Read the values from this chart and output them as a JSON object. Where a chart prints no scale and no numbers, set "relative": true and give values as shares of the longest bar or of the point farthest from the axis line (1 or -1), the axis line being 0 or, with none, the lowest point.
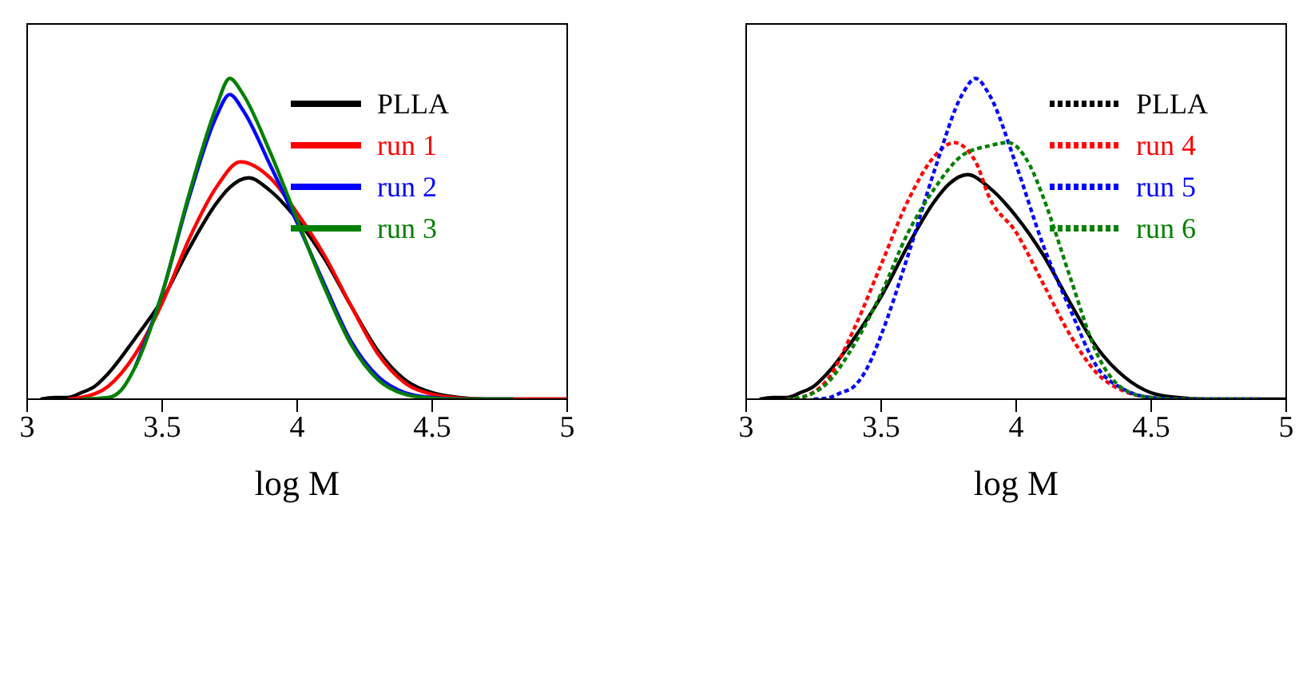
{
  "chart_data": [
    {
      "type": "line",
      "relative": true,
      "xlabel": "log M",
      "xlim": [
        3,
        5
      ],
      "xticks": [
        3,
        3.5,
        4,
        4.5,
        5
      ],
      "legend": "top right",
      "line_style": "solid",
      "series": [
        {
          "name": "PLLA",
          "color": "#000000",
          "x": [
            3.05,
            3.1,
            3.15,
            3.2,
            3.25,
            3.3,
            3.4,
            3.5,
            3.6,
            3.7,
            3.75,
            3.82,
            3.9,
            4.0,
            4.1,
            4.2,
            4.3,
            4.4,
            4.5,
            4.6,
            4.7,
            5.0
          ],
          "values": [
            0,
            0.005,
            0.005,
            0.02,
            0.04,
            0.08,
            0.19,
            0.31,
            0.47,
            0.61,
            0.66,
            0.69,
            0.65,
            0.56,
            0.44,
            0.29,
            0.15,
            0.06,
            0.02,
            0.005,
            0,
            0
          ]
        },
        {
          "name": "run 1",
          "color": "#ff0000",
          "x": [
            3.15,
            3.2,
            3.3,
            3.4,
            3.5,
            3.6,
            3.7,
            3.79,
            3.9,
            4.0,
            4.1,
            4.2,
            4.3,
            4.4,
            4.5,
            4.6,
            4.7,
            5.0
          ],
          "values": [
            0,
            0.005,
            0.04,
            0.14,
            0.3,
            0.5,
            0.66,
            0.74,
            0.69,
            0.58,
            0.45,
            0.29,
            0.14,
            0.05,
            0.015,
            0.003,
            0,
            0
          ]
        },
        {
          "name": "run 2",
          "color": "#0000ff",
          "x": [
            3.4,
            3.5,
            3.6,
            3.7,
            3.75,
            3.8,
            3.9,
            4.0,
            4.1,
            4.2,
            4.3,
            4.4,
            4.5,
            4.6,
            4.8
          ],
          "values": [
            0.1,
            0.33,
            0.63,
            0.88,
            0.95,
            0.9,
            0.73,
            0.55,
            0.36,
            0.18,
            0.07,
            0.02,
            0.005,
            0,
            0
          ]
        },
        {
          "name": "run 3",
          "color": "#008000",
          "x": [
            3.2,
            3.3,
            3.35,
            3.4,
            3.5,
            3.6,
            3.7,
            3.75,
            3.8,
            3.9,
            4.0,
            4.1,
            4.2,
            4.3,
            4.4,
            4.5,
            4.6,
            4.8
          ],
          "values": [
            0,
            0.005,
            0.03,
            0.1,
            0.33,
            0.64,
            0.91,
            1,
            0.95,
            0.77,
            0.56,
            0.35,
            0.17,
            0.06,
            0.015,
            0.003,
            0,
            0
          ]
        }
      ]
    },
    {
      "type": "line",
      "relative": true,
      "xlabel": "log M",
      "xlim": [
        3,
        5
      ],
      "xticks": [
        3,
        3.5,
        4,
        4.5,
        5
      ],
      "legend": "top right",
      "line_style": "dotted",
      "series": [
        {
          "name": "PLLA",
          "color": "#000000",
          "line_style": "solid",
          "x": [
            3.05,
            3.1,
            3.15,
            3.2,
            3.25,
            3.3,
            3.4,
            3.5,
            3.6,
            3.7,
            3.75,
            3.82,
            3.9,
            4.0,
            4.1,
            4.2,
            4.3,
            4.4,
            4.5,
            4.6,
            4.7,
            5.0
          ],
          "values": [
            0,
            0.005,
            0.005,
            0.02,
            0.04,
            0.08,
            0.19,
            0.32,
            0.48,
            0.62,
            0.67,
            0.7,
            0.66,
            0.57,
            0.45,
            0.3,
            0.16,
            0.07,
            0.02,
            0.005,
            0,
            0
          ]
        },
        {
          "name": "run 4",
          "color": "#ff0000",
          "x": [
            3.15,
            3.2,
            3.3,
            3.4,
            3.5,
            3.6,
            3.7,
            3.77,
            3.85,
            3.9,
            4.0,
            4.1,
            4.2,
            4.3,
            4.4,
            4.5,
            4.6,
            4.9
          ],
          "values": [
            0,
            0.005,
            0.06,
            0.22,
            0.42,
            0.62,
            0.76,
            0.8,
            0.74,
            0.63,
            0.52,
            0.36,
            0.2,
            0.08,
            0.025,
            0.005,
            0,
            0
          ]
        },
        {
          "name": "run 5",
          "color": "#0000ff",
          "x": [
            3.25,
            3.3,
            3.35,
            3.4,
            3.45,
            3.5,
            3.6,
            3.7,
            3.8,
            3.85,
            3.9,
            4.0,
            4.1,
            4.2,
            4.3,
            4.4,
            4.5,
            4.6,
            4.9
          ],
          "values": [
            0,
            0.003,
            0.02,
            0.04,
            0.1,
            0.2,
            0.45,
            0.72,
            0.95,
            1,
            0.95,
            0.73,
            0.48,
            0.28,
            0.1,
            0.03,
            0.005,
            0,
            0
          ]
        },
        {
          "name": "run 6",
          "color": "#008000",
          "x": [
            3.15,
            3.2,
            3.3,
            3.4,
            3.5,
            3.6,
            3.7,
            3.8,
            3.9,
            3.97,
            4.05,
            4.1,
            4.2,
            4.3,
            4.4,
            4.5,
            4.6,
            4.9
          ],
          "values": [
            0,
            0.005,
            0.05,
            0.17,
            0.33,
            0.52,
            0.66,
            0.76,
            0.79,
            0.8,
            0.73,
            0.63,
            0.38,
            0.14,
            0.03,
            0.005,
            0,
            0
          ]
        }
      ]
    }
  ]
}
